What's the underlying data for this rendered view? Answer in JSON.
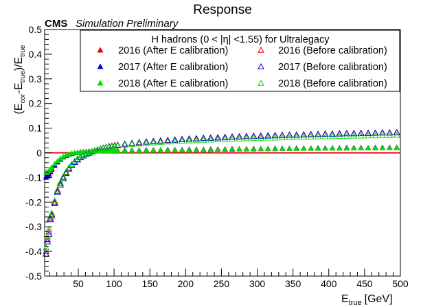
{
  "chart_data": {
    "type": "scatter",
    "title": "Response",
    "experiment": "CMS",
    "experiment_note": "Simulation Preliminary",
    "xlabel": "E",
    "xlabel_sub": "true",
    "xlabel_unit": "[GeV]",
    "ylabel_parts": [
      "(E",
      "cor",
      "-E",
      "true",
      ")/E",
      "true"
    ],
    "xlim": [
      3,
      500
    ],
    "ylim": [
      -0.5,
      0.5
    ],
    "xticks": [
      50,
      100,
      150,
      200,
      250,
      300,
      350,
      400,
      450,
      500
    ],
    "yticks": [
      -0.5,
      -0.4,
      -0.3,
      -0.2,
      -0.1,
      0,
      0.1,
      0.2,
      0.3,
      0.4,
      0.5
    ],
    "reference_line": {
      "y": 0,
      "color": "#e8000b"
    },
    "legend": {
      "title_parts": [
        "H hadrons (0 < |η| <1.55) for Ultralegacy"
      ],
      "placement": "top-right"
    },
    "colors": {
      "y2016": "#e8000b",
      "y2017": "#0000d8",
      "y2018": "#00e000"
    },
    "series": [
      {
        "name": "2016 (After E calibration)",
        "marker": "filled-triangle",
        "color": "#e8000b",
        "x": [
          5,
          7,
          9,
          11,
          13,
          17,
          21,
          25,
          29,
          33,
          37,
          41,
          45,
          49,
          53,
          57,
          61,
          65,
          69,
          73,
          77,
          81,
          85,
          89,
          93,
          97,
          101,
          105,
          115,
          125,
          135,
          145,
          155,
          165,
          175,
          185,
          195,
          205,
          215,
          225,
          235,
          245,
          255,
          265,
          275,
          285,
          295,
          305,
          315,
          325,
          335,
          345,
          355,
          365,
          375,
          385,
          395,
          405,
          415,
          425,
          435,
          445,
          455,
          465,
          475,
          485,
          495
        ],
        "y": [
          -0.095,
          -0.09,
          -0.085,
          -0.075,
          -0.065,
          -0.05,
          -0.036,
          -0.025,
          -0.017,
          -0.011,
          -0.006,
          -0.003,
          0.0,
          0.002,
          0.004,
          0.005,
          0.006,
          0.007,
          0.008,
          0.008,
          0.009,
          0.009,
          0.009,
          0.01,
          0.01,
          0.01,
          0.01,
          0.01,
          0.011,
          0.011,
          0.011,
          0.012,
          0.012,
          0.012,
          0.013,
          0.013,
          0.013,
          0.014,
          0.014,
          0.014,
          0.015,
          0.015,
          0.015,
          0.016,
          0.016,
          0.016,
          0.017,
          0.017,
          0.017,
          0.018,
          0.018,
          0.018,
          0.019,
          0.019,
          0.019,
          0.02,
          0.02,
          0.02,
          0.02,
          0.021,
          0.021,
          0.021,
          0.021,
          0.022,
          0.022,
          0.022,
          0.022
        ]
      },
      {
        "name": "2017 (After E calibration)",
        "marker": "filled-triangle",
        "color": "#0000d8",
        "x": [
          5,
          7,
          9,
          11,
          13,
          17,
          21,
          25,
          29,
          33,
          37,
          41,
          45,
          49,
          53,
          57,
          61,
          65,
          69,
          73,
          77,
          81,
          85,
          89,
          93,
          97,
          101,
          105,
          115,
          125,
          135,
          145,
          155,
          165,
          175,
          185,
          195,
          205,
          215,
          225,
          235,
          245,
          255,
          265,
          275,
          285,
          295,
          305,
          315,
          325,
          335,
          345,
          355,
          365,
          375,
          385,
          395,
          405,
          415,
          425,
          435,
          445,
          455,
          465,
          475,
          485,
          495
        ],
        "y": [
          -0.1,
          -0.095,
          -0.088,
          -0.078,
          -0.068,
          -0.052,
          -0.038,
          -0.027,
          -0.018,
          -0.012,
          -0.007,
          -0.004,
          -0.001,
          0.001,
          0.003,
          0.004,
          0.005,
          0.006,
          0.007,
          0.007,
          0.008,
          0.008,
          0.008,
          0.009,
          0.009,
          0.009,
          0.009,
          0.009,
          0.01,
          0.01,
          0.01,
          0.011,
          0.011,
          0.011,
          0.012,
          0.012,
          0.012,
          0.013,
          0.013,
          0.013,
          0.014,
          0.014,
          0.014,
          0.015,
          0.015,
          0.015,
          0.016,
          0.016,
          0.016,
          0.017,
          0.017,
          0.017,
          0.018,
          0.018,
          0.018,
          0.019,
          0.019,
          0.019,
          0.019,
          0.02,
          0.02,
          0.02,
          0.02,
          0.021,
          0.021,
          0.021,
          0.021
        ]
      },
      {
        "name": "2018 (After E calibration)",
        "marker": "filled-triangle",
        "color": "#00e000",
        "x": [
          5,
          7,
          9,
          11,
          13,
          17,
          21,
          25,
          29,
          33,
          37,
          41,
          45,
          49,
          53,
          57,
          61,
          65,
          69,
          73,
          77,
          81,
          85,
          89,
          93,
          97,
          101,
          105,
          115,
          125,
          135,
          145,
          155,
          165,
          175,
          185,
          195,
          205,
          215,
          225,
          235,
          245,
          255,
          265,
          275,
          285,
          295,
          305,
          315,
          325,
          335,
          345,
          355,
          365,
          375,
          385,
          395,
          405,
          415,
          425,
          435,
          445,
          455,
          465,
          475,
          485,
          495
        ],
        "y": [
          -0.08,
          -0.078,
          -0.073,
          -0.066,
          -0.058,
          -0.045,
          -0.033,
          -0.023,
          -0.015,
          -0.009,
          -0.005,
          -0.002,
          0.0,
          0.002,
          0.003,
          0.004,
          0.005,
          0.005,
          0.006,
          0.006,
          0.006,
          0.007,
          0.007,
          0.007,
          0.007,
          0.008,
          0.008,
          0.008,
          0.008,
          0.009,
          0.009,
          0.009,
          0.01,
          0.01,
          0.01,
          0.011,
          0.011,
          0.011,
          0.012,
          0.012,
          0.012,
          0.013,
          0.013,
          0.013,
          0.014,
          0.014,
          0.014,
          0.015,
          0.015,
          0.015,
          0.016,
          0.016,
          0.016,
          0.017,
          0.017,
          0.017,
          0.018,
          0.018,
          0.018,
          0.018,
          0.019,
          0.019,
          0.019,
          0.019,
          0.02,
          0.02,
          0.02
        ]
      },
      {
        "name": "2016 (Before calibration)",
        "marker": "open-triangle",
        "color": "#e8000b",
        "x": [
          5,
          7,
          9,
          11,
          13,
          17,
          21,
          25,
          29,
          33,
          37,
          41,
          45,
          49,
          53,
          57,
          61,
          65,
          69,
          73,
          77,
          81,
          85,
          89,
          93,
          97,
          101,
          105,
          115,
          125,
          135,
          145,
          155,
          165,
          175,
          185,
          195,
          205,
          215,
          225,
          235,
          245,
          255,
          265,
          275,
          285,
          295,
          305,
          315,
          325,
          335,
          345,
          355,
          365,
          375,
          385,
          395,
          405,
          415,
          425,
          435,
          445,
          455,
          465,
          475,
          485,
          495
        ],
        "y": [
          -0.4,
          -0.35,
          -0.32,
          -0.265,
          -0.25,
          -0.2,
          -0.155,
          -0.125,
          -0.1,
          -0.08,
          -0.062,
          -0.048,
          -0.036,
          -0.026,
          -0.018,
          -0.011,
          -0.005,
          0.0,
          0.005,
          0.009,
          0.013,
          0.017,
          0.02,
          0.023,
          0.026,
          0.028,
          0.03,
          0.032,
          0.036,
          0.039,
          0.042,
          0.045,
          0.047,
          0.049,
          0.051,
          0.053,
          0.055,
          0.057,
          0.058,
          0.06,
          0.061,
          0.062,
          0.063,
          0.065,
          0.066,
          0.067,
          0.068,
          0.069,
          0.07,
          0.071,
          0.072,
          0.073,
          0.073,
          0.074,
          0.075,
          0.076,
          0.077,
          0.077,
          0.078,
          0.079,
          0.079,
          0.08,
          0.08,
          0.081,
          0.082,
          0.082,
          0.083
        ]
      },
      {
        "name": "2017 (Before calibration)",
        "marker": "open-triangle",
        "color": "#0000d8",
        "x": [
          5,
          7,
          9,
          11,
          13,
          17,
          21,
          25,
          29,
          33,
          37,
          41,
          45,
          49,
          53,
          57,
          61,
          65,
          69,
          73,
          77,
          81,
          85,
          89,
          93,
          97,
          101,
          105,
          115,
          125,
          135,
          145,
          155,
          165,
          175,
          185,
          195,
          205,
          215,
          225,
          235,
          245,
          255,
          265,
          275,
          285,
          295,
          305,
          315,
          325,
          335,
          345,
          355,
          365,
          375,
          385,
          395,
          405,
          415,
          425,
          435,
          445,
          455,
          465,
          475,
          485,
          495
        ],
        "y": [
          -0.41,
          -0.36,
          -0.33,
          -0.27,
          -0.255,
          -0.205,
          -0.16,
          -0.13,
          -0.104,
          -0.083,
          -0.065,
          -0.05,
          -0.038,
          -0.028,
          -0.019,
          -0.012,
          -0.006,
          -0.001,
          0.004,
          0.008,
          0.012,
          0.016,
          0.019,
          0.022,
          0.025,
          0.027,
          0.029,
          0.031,
          0.035,
          0.038,
          0.041,
          0.044,
          0.046,
          0.048,
          0.05,
          0.052,
          0.054,
          0.056,
          0.057,
          0.059,
          0.06,
          0.061,
          0.062,
          0.064,
          0.065,
          0.066,
          0.067,
          0.068,
          0.069,
          0.07,
          0.071,
          0.072,
          0.072,
          0.073,
          0.074,
          0.075,
          0.076,
          0.076,
          0.077,
          0.078,
          0.078,
          0.079,
          0.079,
          0.08,
          0.081,
          0.081,
          0.082
        ]
      },
      {
        "name": "2018 (Before calibration)",
        "marker": "open-triangle",
        "color": "#00e000",
        "x": [
          5,
          7,
          9,
          11,
          13,
          17,
          21,
          25,
          29,
          33,
          37,
          41,
          45,
          49,
          53,
          57,
          61,
          65,
          69,
          73,
          77,
          81,
          85,
          89,
          93,
          97,
          101,
          105,
          115,
          125,
          135,
          145,
          155,
          165,
          175,
          185,
          195,
          205,
          215,
          225,
          235,
          245,
          255,
          265,
          275,
          285,
          295,
          305,
          315,
          325,
          335,
          345,
          355,
          365,
          375,
          385,
          395,
          405,
          415,
          425,
          435,
          445,
          455,
          465,
          475,
          485,
          495
        ],
        "y": [
          -0.385,
          -0.34,
          -0.31,
          -0.26,
          -0.245,
          -0.195,
          -0.15,
          -0.12,
          -0.097,
          -0.077,
          -0.06,
          -0.046,
          -0.034,
          -0.024,
          -0.016,
          -0.009,
          -0.004,
          0.001,
          0.005,
          0.009,
          0.012,
          0.015,
          0.018,
          0.021,
          0.023,
          0.025,
          0.027,
          0.029,
          0.032,
          0.035,
          0.037,
          0.039,
          0.041,
          0.043,
          0.045,
          0.046,
          0.048,
          0.049,
          0.05,
          0.052,
          0.053,
          0.054,
          0.055,
          0.056,
          0.057,
          0.058,
          0.059,
          0.06,
          0.061,
          0.061,
          0.062,
          0.063,
          0.064,
          0.064,
          0.065,
          0.066,
          0.066,
          0.067,
          0.068,
          0.068,
          0.069,
          0.069,
          0.07,
          0.07,
          0.071,
          0.071,
          0.072
        ]
      }
    ]
  }
}
